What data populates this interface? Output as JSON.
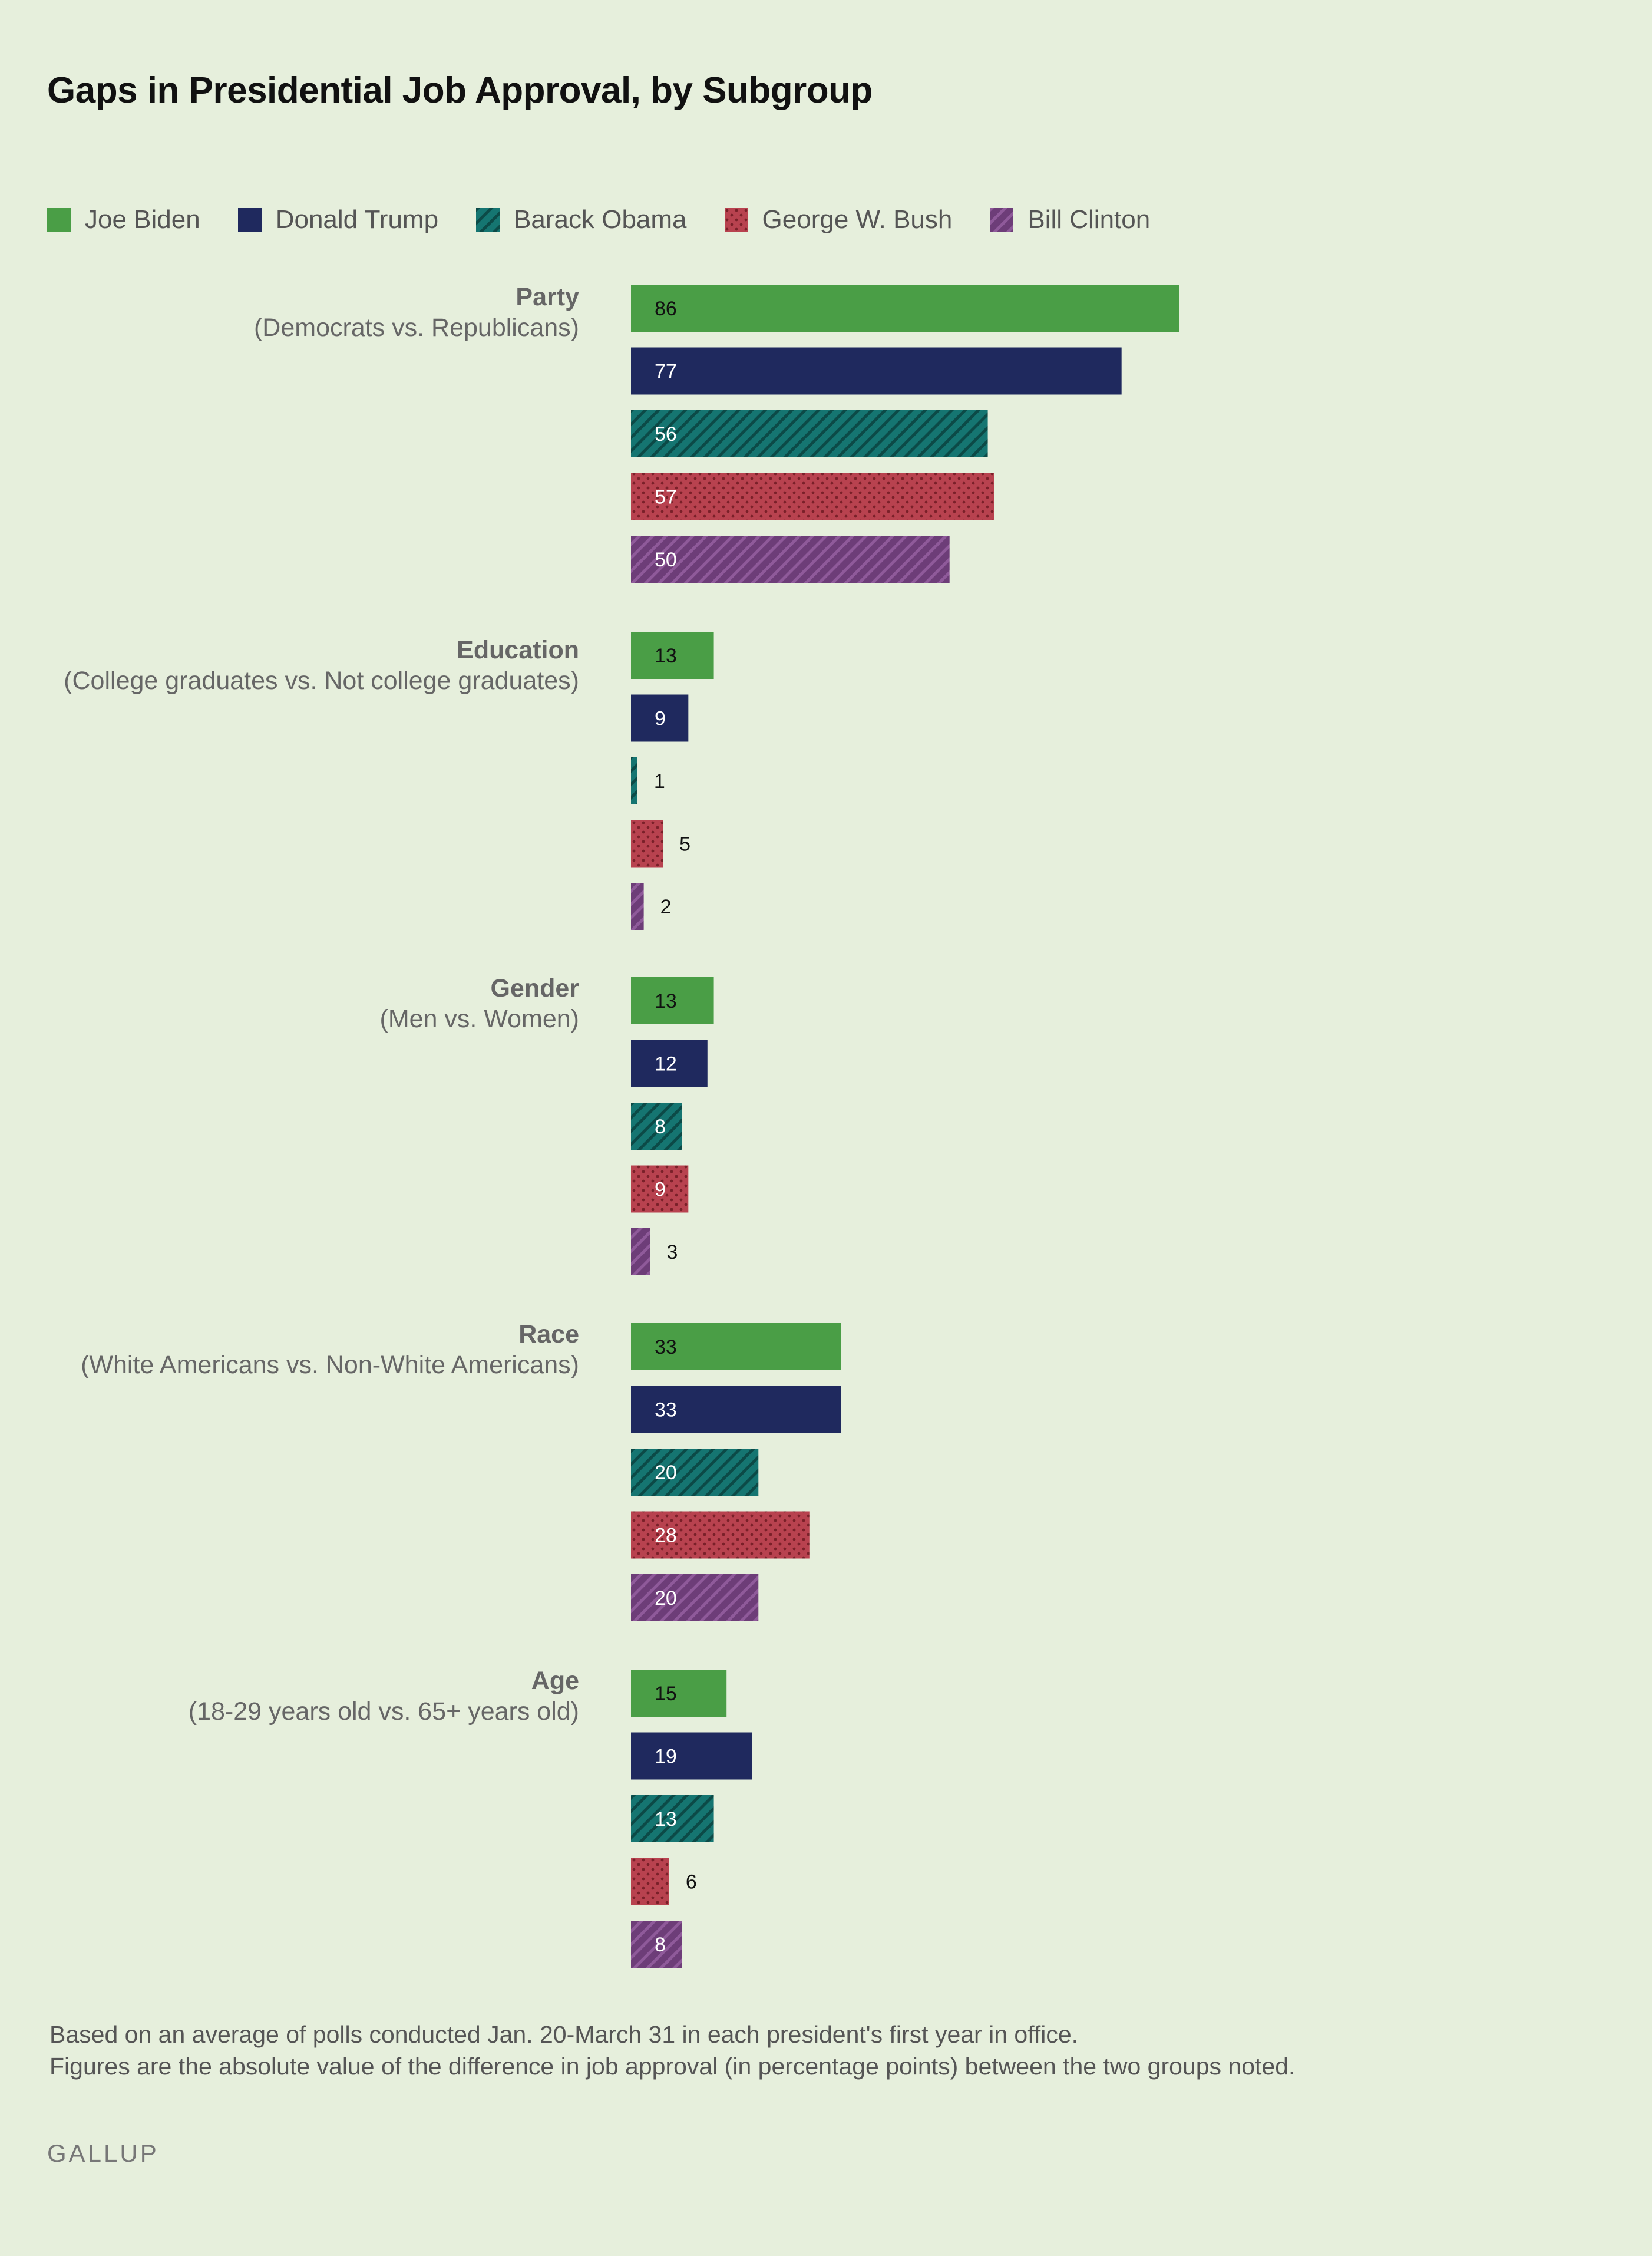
{
  "title": "Gaps in Presidential Job Approval, by Subgroup",
  "legend": [
    {
      "name": "Joe Biden",
      "color": "#4a9e46",
      "pattern": "solid"
    },
    {
      "name": "Donald Trump",
      "color": "#1f295e",
      "pattern": "solid"
    },
    {
      "name": "Barack Obama",
      "color": "#157571",
      "pattern": "diagonal"
    },
    {
      "name": "George W. Bush",
      "color": "#b8424f",
      "pattern": "dots"
    },
    {
      "name": "Bill Clinton",
      "color": "#6d3d78",
      "pattern": "diagonal"
    }
  ],
  "footer": {
    "line1": "Based on an average of polls conducted Jan. 20-March 31 in each president's first year in office.",
    "line2": "Figures are the absolute value of the difference in job approval (in percentage points) between the two groups noted."
  },
  "brand": "GALLUP",
  "chart_data": {
    "type": "bar",
    "orientation": "horizontal",
    "title": "Gaps in Presidential Job Approval, by Subgroup",
    "legend_position": "top-left",
    "grid": false,
    "xlim": [
      0,
      86
    ],
    "series_names": [
      "Joe Biden",
      "Donald Trump",
      "Barack Obama",
      "George W. Bush",
      "Bill Clinton"
    ],
    "groups": [
      {
        "label": "Party",
        "sublabel": "(Democrats vs. Republicans)",
        "values": [
          86,
          77,
          56,
          57,
          50
        ]
      },
      {
        "label": "Education",
        "sublabel": "(College graduates vs. Not college graduates)",
        "values": [
          13,
          9,
          1,
          5,
          2
        ]
      },
      {
        "label": "Gender",
        "sublabel": "(Men vs. Women)",
        "values": [
          13,
          12,
          8,
          9,
          3
        ]
      },
      {
        "label": "Race",
        "sublabel": "(White Americans vs. Non-White Americans)",
        "values": [
          33,
          33,
          20,
          28,
          20
        ]
      },
      {
        "label": "Age",
        "sublabel": "(18-29 years old vs. 65+ years old)",
        "values": [
          15,
          19,
          13,
          6,
          8
        ]
      }
    ]
  }
}
